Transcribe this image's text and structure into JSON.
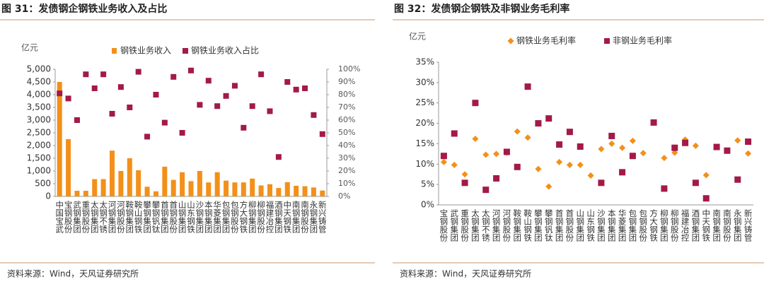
{
  "chart_data": [
    {
      "type": "bar",
      "title": "图 31：发债钢企钢铁业务收入及占比",
      "y_label": "亿元",
      "source": "资料来源：Wind，天风证券研究所",
      "categories": [
        "中国宝武",
        "宝钢股份",
        "武钢集团",
        "重钢股份",
        "太钢集团",
        "太钢不锈",
        "河钢集团",
        "河钢股份",
        "鞍钢集团",
        "鞍山钢铁",
        "攀钢集团",
        "攀钢钒钛",
        "首钢集团",
        "首钢股份",
        "山钢集团",
        "山东钢铁",
        "沙钢集团",
        "本钢集团",
        "华菱集团",
        "包钢集团",
        "包钢股份",
        "方大钢铁",
        "柳钢集团",
        "柳钢股份",
        "福建冶控",
        "酒钢集团",
        "中天钢铁",
        "南钢集团",
        "南钢股份",
        "永钢集团",
        "新兴铸管"
      ],
      "series": [
        {
          "name": "钢铁业务收入",
          "color": "#f39019",
          "marker": "bar",
          "values": [
            4500,
            2250,
            220,
            220,
            680,
            680,
            1800,
            1000,
            1500,
            1030,
            380,
            200,
            1170,
            650,
            950,
            600,
            1000,
            550,
            950,
            620,
            550,
            550,
            700,
            430,
            480,
            330,
            560,
            420,
            400,
            350,
            230
          ]
        },
        {
          "name": "钢铁业务收入占比",
          "color": "#a31a47",
          "marker": "square",
          "axis": "y2",
          "values": [
            81,
            77,
            60,
            96,
            85,
            96,
            65,
            86,
            70,
            98,
            47,
            80,
            58,
            94,
            50,
            99,
            72,
            91,
            71,
            79,
            87,
            54,
            71,
            96,
            67,
            31,
            90,
            84,
            85,
            64,
            49
          ]
        }
      ],
      "ylim": [
        0,
        5000
      ],
      "yticks": [
        0,
        {
          "value": 500,
          "label": "500"
        },
        {
          "value": 1000,
          "label": "1,000"
        },
        {
          "value": 1500,
          "label": "1,500"
        },
        {
          "value": 2000,
          "label": "2,000"
        },
        {
          "value": 2500,
          "label": "2,500"
        },
        {
          "value": 3000,
          "label": "3,000"
        },
        {
          "value": 3500,
          "label": "3,500"
        },
        {
          "value": 4000,
          "label": "4,000"
        },
        {
          "value": 4500,
          "label": "4,500"
        },
        {
          "value": 5000,
          "label": "5,000"
        }
      ],
      "y2lim": [
        0,
        100
      ],
      "y2ticks": [
        {
          "value": 0,
          "label": "0%"
        },
        {
          "value": 10,
          "label": "10%"
        },
        {
          "value": 20,
          "label": "20%"
        },
        {
          "value": 30,
          "label": "30%"
        },
        {
          "value": 40,
          "label": "40%"
        },
        {
          "value": 50,
          "label": "50%"
        },
        {
          "value": 60,
          "label": "60%"
        },
        {
          "value": 70,
          "label": "70%"
        },
        {
          "value": 80,
          "label": "80%"
        },
        {
          "value": 90,
          "label": "90%"
        },
        {
          "value": 100,
          "label": "100%"
        }
      ],
      "grid": false
    },
    {
      "type": "scatter",
      "title": "图 32：发债钢企钢铁及非钢业务毛利率",
      "y_label": "亿元",
      "source": "资料来源：Wind，天风证券研究所",
      "categories": [
        "宝钢股份",
        "武钢集团",
        "重钢股份",
        "太钢集团",
        "太钢不锈",
        "河钢集团",
        "河钢股份",
        "鞍钢集团",
        "鞍山钢铁",
        "攀钢集团",
        "攀钢钒钛",
        "首钢集团",
        "首钢股份",
        "山钢集团",
        "山东钢铁",
        "沙钢集团",
        "本钢集团",
        "华菱集团",
        "包钢集团",
        "包钢股份",
        "方大钢铁",
        "柳钢集团",
        "柳钢股份",
        "福建冶控",
        "酒钢集团",
        "中天钢铁",
        "南钢集团",
        "南钢股份",
        "永钢集团",
        "新兴铸管"
      ],
      "series": [
        {
          "name": "钢铁业务毛利率",
          "color": "#f39019",
          "marker": "diamond",
          "values": [
            10.5,
            9.8,
            7.5,
            16.2,
            12.3,
            12.5,
            12.8,
            18,
            16.5,
            8.8,
            4.5,
            10.5,
            9.8,
            9.8,
            7.2,
            13.7,
            15,
            14,
            15.7,
            12.7,
            null,
            11.5,
            12.8,
            16,
            14.5,
            7.3,
            14.2,
            null,
            15.8,
            12.6
          ]
        },
        {
          "name": "非钢业务毛利率",
          "color": "#a31a47",
          "marker": "square",
          "values": [
            12,
            17.5,
            5.4,
            25,
            3.7,
            6.5,
            13,
            9.3,
            29,
            20,
            21.2,
            14.8,
            17.9,
            14.3,
            null,
            5.4,
            16.9,
            8,
            12,
            null,
            20.2,
            4,
            14,
            15.2,
            5.4,
            1.6,
            14.2,
            13.3,
            6.2,
            15.5
          ]
        }
      ],
      "ylim": [
        0,
        35
      ],
      "yticks": [
        {
          "value": 0,
          "label": "0%"
        },
        {
          "value": 5,
          "label": "5%"
        },
        {
          "value": 10,
          "label": "10%"
        },
        {
          "value": 15,
          "label": "15%"
        },
        {
          "value": 20,
          "label": "20%"
        },
        {
          "value": 25,
          "label": "25%"
        },
        {
          "value": 30,
          "label": "30%"
        },
        {
          "value": 35,
          "label": "35%"
        }
      ],
      "grid": false
    }
  ]
}
